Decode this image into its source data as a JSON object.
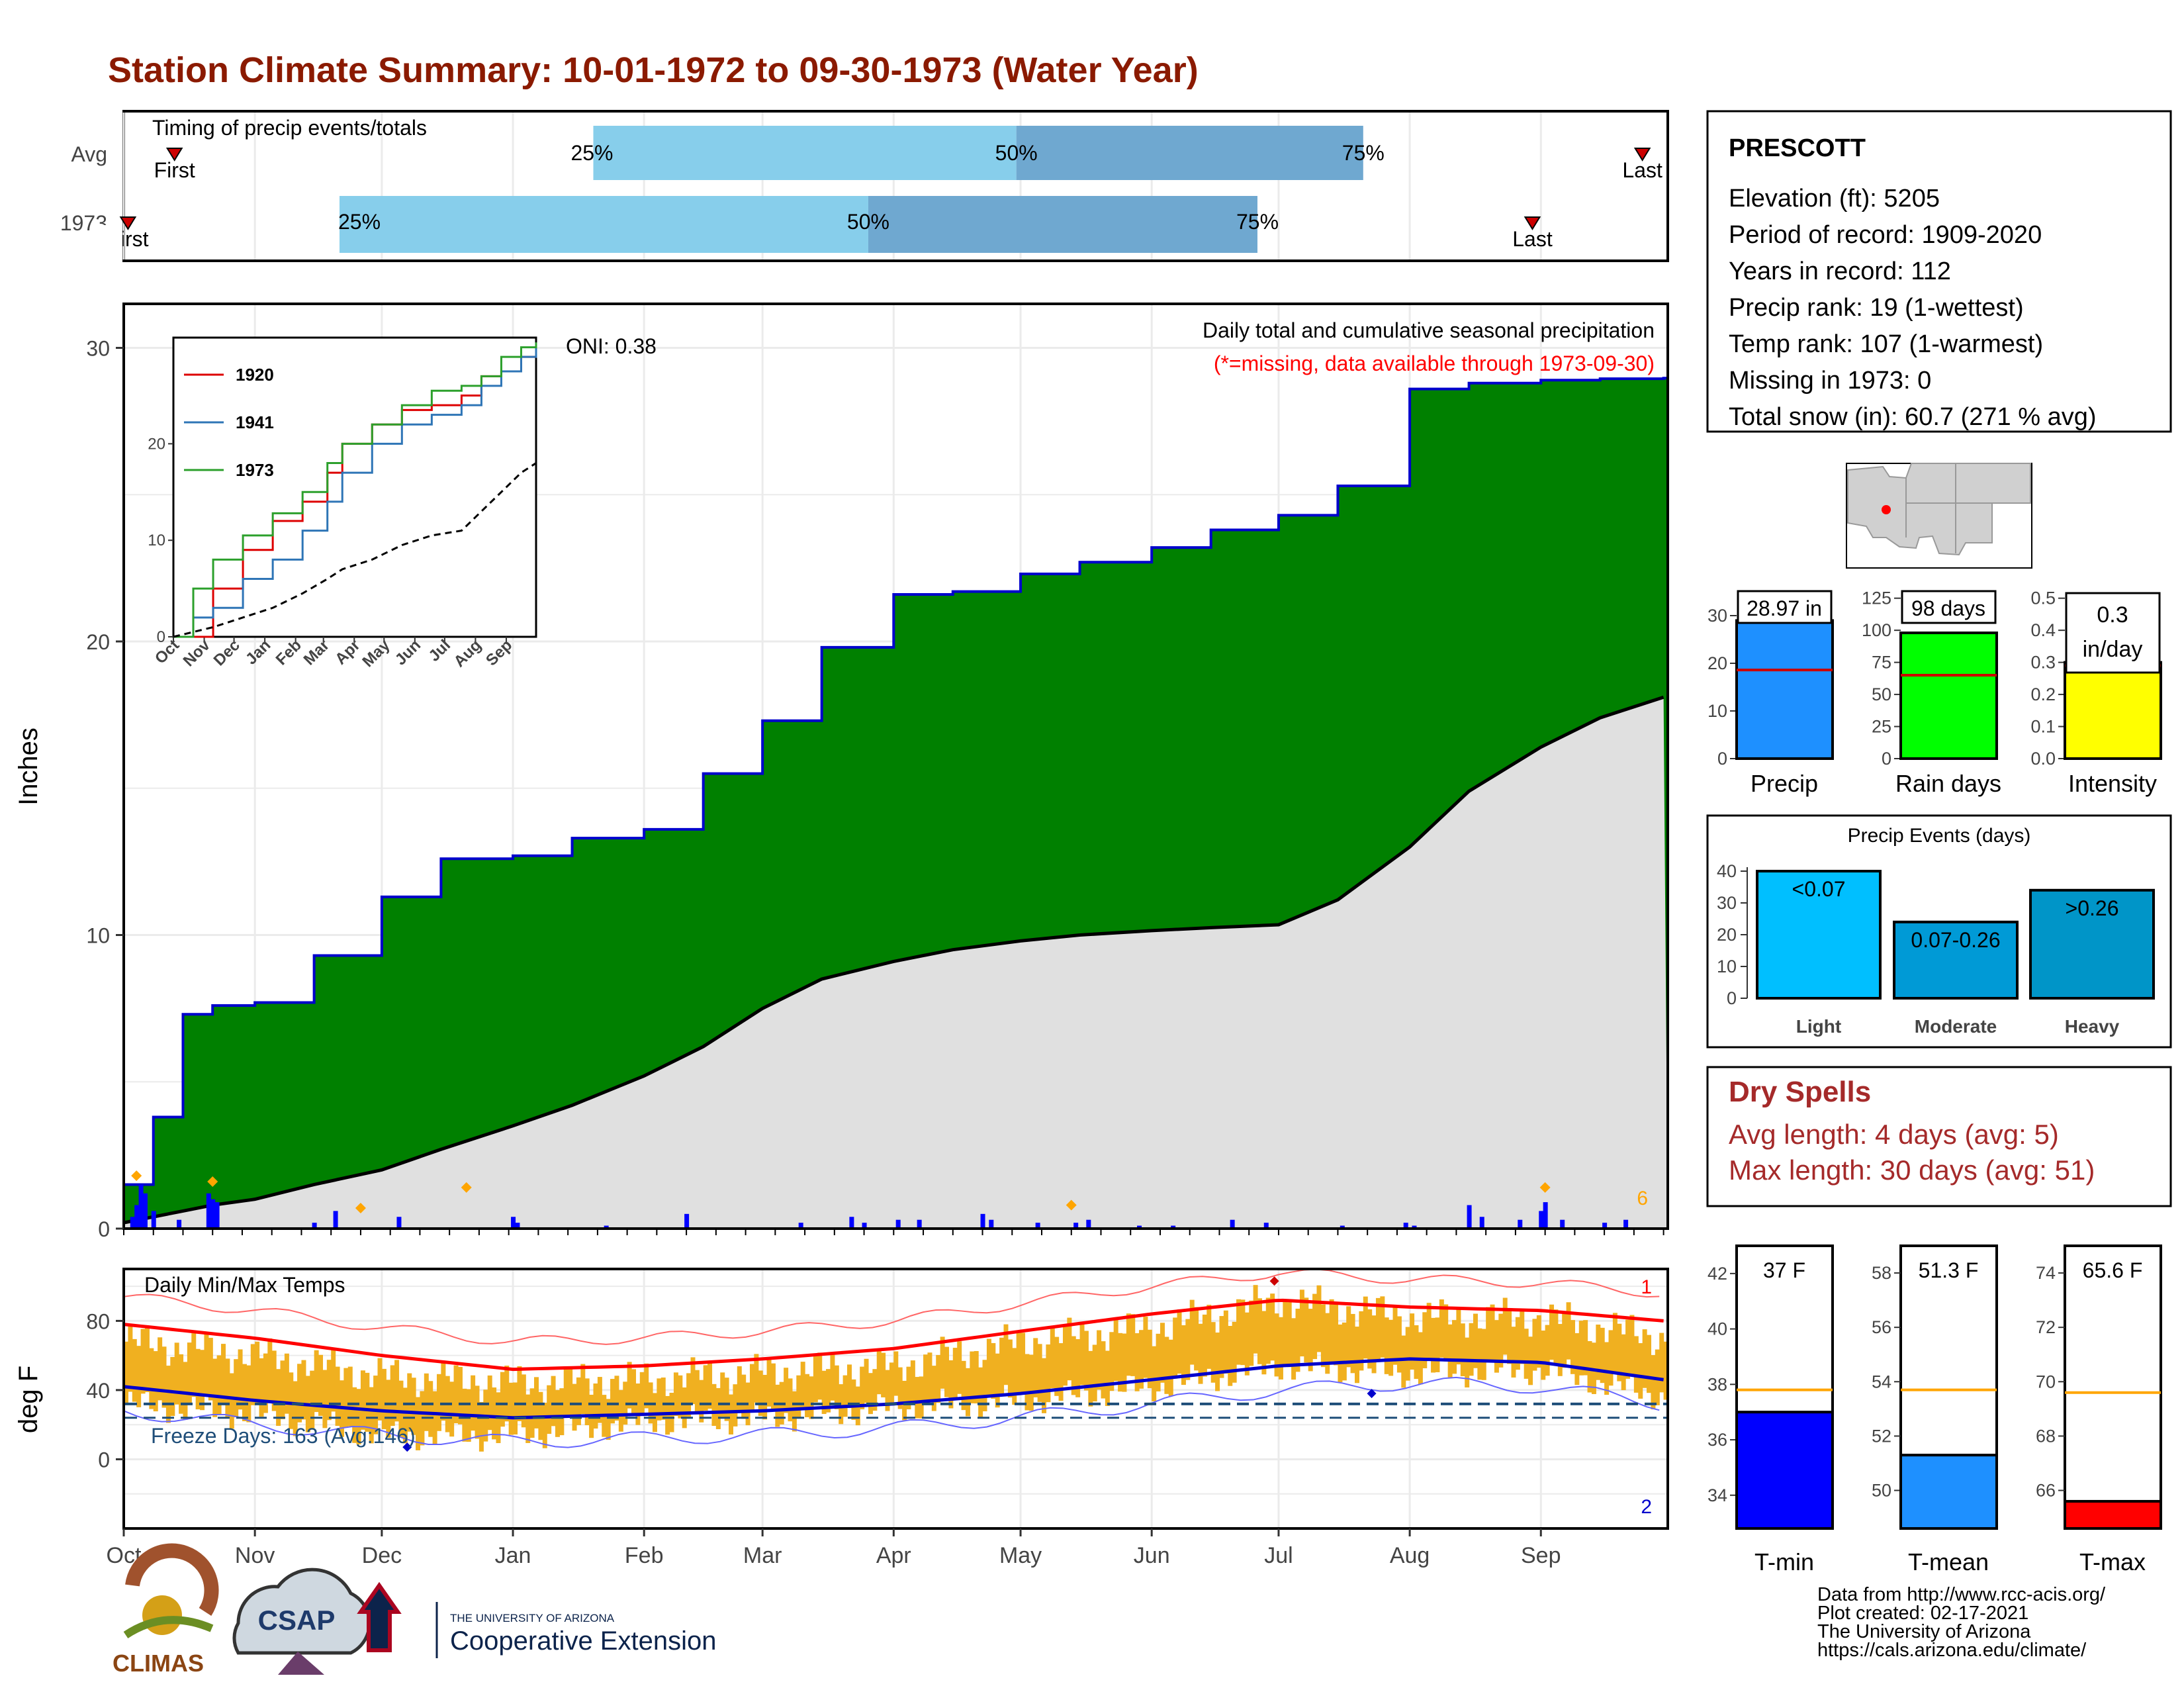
{
  "title": "Station Climate Summary: 10-01-1972 to 09-30-1973 (Water Year)",
  "colors": {
    "title": "#8b1a00",
    "precip_fill": "#008000",
    "precip_line": "#0000cc",
    "avg_fill": "#e0e0e0",
    "light_bar": "#87ceeb",
    "dark_bar": "#6fa8d0",
    "tmax": "#ff0000",
    "tmin": "#0000cc",
    "temp_bars": "#f0b020",
    "dry_spells": "#a52a2a",
    "rank_line": "#cc0000"
  },
  "timing": {
    "label": "Timing of precip events/totals",
    "rows": [
      {
        "label": "Avg",
        "first_label": "First",
        "last_label": "Last",
        "p25": "25%",
        "p50": "50%",
        "p75": "75%",
        "first": "10-13",
        "d25": "01-20",
        "d50": "04-30",
        "d75": "07-21",
        "last": "09-25"
      },
      {
        "label": "1973",
        "first_label": "First",
        "last_label": "Last",
        "p25": "25%",
        "p50": "50%",
        "p75": "75%",
        "first": "10-02",
        "d25": "11-21",
        "d50": "03-26",
        "d75": "06-26",
        "last": "08-30"
      }
    ]
  },
  "station": {
    "name": "PRESCOTT",
    "lines": [
      "Elevation (ft): 5205",
      "Period of record: 1909-2020",
      "Years in record: 112",
      "Precip rank: 19 (1-wettest)",
      "Temp rank: 107 (1-warmest)",
      "Missing in 1973: 0",
      "Total snow (in): 60.7 (271 % avg)"
    ]
  },
  "main_chart": {
    "title": "Daily total and cumulative seasonal precipitation",
    "missing_note": "(*=missing, data available through 1973-09-30)",
    "oni": "ONI: 0.38",
    "ylabel": "Inches",
    "y_ticks": [
      "0",
      "10",
      "20",
      "30"
    ],
    "snow_count": "6",
    "month_labels": [
      "Oct",
      "Nov",
      "Dec",
      "Jan",
      "Feb",
      "Mar",
      "Apr",
      "May",
      "Jun",
      "Jul",
      "Aug",
      "Sep"
    ]
  },
  "inset": {
    "legend": [
      "1920",
      "1941",
      "1973"
    ],
    "y_ticks": [
      "0",
      "10",
      "20"
    ],
    "month_labels": [
      "Oct",
      "Nov",
      "Dec",
      "Jan",
      "Feb",
      "Mar",
      "Apr",
      "May",
      "Jun",
      "Jul",
      "Aug",
      "Sep"
    ]
  },
  "mini_bars": [
    {
      "label": "Precip",
      "value_text": "28.97 in",
      "ticks": [
        "0",
        "10",
        "20",
        "30"
      ]
    },
    {
      "label": "Rain days",
      "value_text": "98 days",
      "ticks": [
        "0",
        "25",
        "50",
        "75",
        "100",
        "125"
      ]
    },
    {
      "label": "Intensity",
      "value_text": "0.3",
      "value_unit": "in/day",
      "ticks": [
        "0.0",
        "0.1",
        "0.2",
        "0.3",
        "0.4",
        "0.5"
      ]
    }
  ],
  "events": {
    "title": "Precip Events (days)",
    "ticks": [
      "0",
      "10",
      "20",
      "30",
      "40"
    ],
    "bars": [
      {
        "label": "Light",
        "range": "<0.07",
        "value": 40
      },
      {
        "label": "Moderate",
        "range": "0.07-0.26",
        "value": 24
      },
      {
        "label": "Heavy",
        "range": ">0.26",
        "value": 34
      }
    ]
  },
  "dry_spells": {
    "title": "Dry Spells",
    "avg": "Avg length: 4 days (avg: 5)",
    "max": "Max length: 30 days (avg: 51)"
  },
  "temp_chart": {
    "title": "Daily Min/Max Temps",
    "ylabel": "deg F",
    "y_ticks": [
      "0",
      "40",
      "80"
    ],
    "freeze": "Freeze Days: 163 (Avg:146)",
    "record_high_count": "1",
    "record_low_count": "2"
  },
  "temp_bars": [
    {
      "label": "T-min",
      "value_text": "37 F",
      "ticks": [
        "34",
        "36",
        "38",
        "40",
        "42"
      ]
    },
    {
      "label": "T-mean",
      "value_text": "51.3 F",
      "ticks": [
        "50",
        "52",
        "54",
        "56",
        "58"
      ]
    },
    {
      "label": "T-max",
      "value_text": "65.6 F",
      "ticks": [
        "66",
        "68",
        "70",
        "72",
        "74"
      ]
    }
  ],
  "footer": {
    "lines": [
      "Data from http://www.rcc-acis.org/",
      "Plot created: 02-17-2021",
      "The University of Arizona",
      "https://cals.arizona.edu/climate/"
    ],
    "climas": "CLIMAS",
    "csap": "CSAP",
    "ua_small": "THE UNIVERSITY OF ARIZONA",
    "ua_big": "Cooperative Extension"
  },
  "chart_data": [
    {
      "type": "area",
      "title": "Daily total and cumulative seasonal precipitation",
      "ylabel": "Inches",
      "ylim": [
        0,
        31.5
      ],
      "x": [
        "10-01",
        "10-08",
        "10-15",
        "10-22",
        "11-01",
        "11-15",
        "12-01",
        "12-15",
        "01-01",
        "01-15",
        "02-01",
        "02-15",
        "03-01",
        "03-15",
        "04-01",
        "04-15",
        "05-01",
        "05-15",
        "06-01",
        "06-15",
        "07-01",
        "07-15",
        "08-01",
        "08-15",
        "09-01",
        "09-15",
        "09-30"
      ],
      "series": [
        {
          "name": "1973",
          "values": [
            1.5,
            3.8,
            7.3,
            7.6,
            7.7,
            9.3,
            11.3,
            12.6,
            12.7,
            13.3,
            13.6,
            15.5,
            17.3,
            19.8,
            21.6,
            21.7,
            22.3,
            22.7,
            23.2,
            23.8,
            24.3,
            25.3,
            28.6,
            28.8,
            28.9,
            28.95,
            28.97
          ]
        },
        {
          "values": [
            0.2,
            0.4,
            0.6,
            0.8,
            1.0,
            1.5,
            2.0,
            2.7,
            3.5,
            4.2,
            5.2,
            6.2,
            7.5,
            8.5,
            9.1,
            9.5,
            9.8,
            10.0,
            10.15,
            10.25,
            10.35,
            11.2,
            13.0,
            14.9,
            16.4,
            17.4,
            18.1
          ]
        }
      ]
    },
    {
      "type": "line",
      "ylabel": "deg F",
      "ylim": [
        -40,
        110
      ],
      "x": [
        "10-01",
        "11-01",
        "12-01",
        "01-01",
        "02-01",
        "03-01",
        "04-01",
        "05-01",
        "06-01",
        "07-01",
        "08-01",
        "09-01",
        "09-30"
      ],
      "series": [
        {
          "values": [
            78,
            70,
            60,
            52,
            54,
            58,
            64,
            74,
            84,
            92,
            88,
            86,
            80
          ]
        },
        {
          "values": [
            42,
            34,
            28,
            24,
            26,
            28,
            32,
            38,
            46,
            54,
            58,
            56,
            46
          ]
        },
        {
          "values": [
            68,
            60,
            48,
            44,
            46,
            50,
            54,
            68,
            76,
            92,
            82,
            82,
            70
          ]
        },
        {
          "values": [
            32,
            26,
            14,
            14,
            22,
            24,
            30,
            34,
            42,
            54,
            50,
            52,
            36
          ]
        }
      ]
    },
    {
      "type": "bar",
      "categories": [
        "Light",
        "Moderate",
        "Heavy"
      ],
      "values": [
        40,
        24,
        34
      ]
    },
    {
      "type": "bar",
      "categories": [
        "T-min",
        "T-mean",
        "T-max"
      ],
      "values": [
        37,
        51.3,
        65.6
      ]
    }
  ]
}
